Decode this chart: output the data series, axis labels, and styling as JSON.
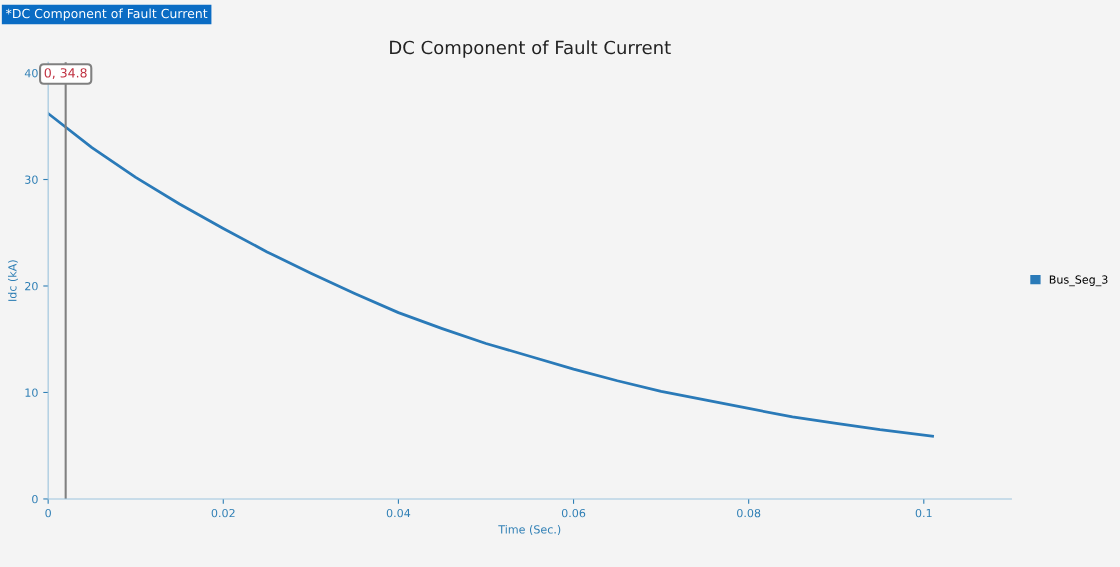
{
  "chart_data": {
    "type": "line",
    "title": "DC Component of Fault Current",
    "xlabel": "Time (Sec.)",
    "ylabel": "Idc (kA)",
    "annotations": [
      "*DC Component of Fault Current"
    ],
    "x": [
      0,
      0.005,
      0.01,
      0.015,
      0.02,
      0.025,
      0.03,
      0.035,
      0.04,
      0.045,
      0.05,
      0.055,
      0.06,
      0.065,
      0.07,
      0.075,
      0.08,
      0.085,
      0.09,
      0.095,
      0.101
    ],
    "series": [
      {
        "name": "Bus_Seg_3",
        "color": "#2a7ab8",
        "values": [
          36.2,
          33.0,
          30.2,
          27.7,
          25.4,
          23.2,
          21.2,
          19.3,
          17.5,
          16.0,
          14.6,
          13.4,
          12.2,
          11.1,
          10.1,
          9.3,
          8.5,
          7.7,
          7.1,
          6.5,
          5.9
        ]
      }
    ],
    "ref_lines": [
      {
        "axis": "x",
        "value": 0.002,
        "label": "0, 34.8",
        "color": "#808080"
      }
    ],
    "xlim": [
      0,
      0.11
    ],
    "ylim": [
      0,
      41
    ],
    "xticks": [
      0,
      0.02,
      0.04,
      0.06,
      0.08,
      {
        "value": 0.1,
        "label": "0.1"
      }
    ],
    "yticks": [
      0,
      10,
      20,
      30,
      40
    ],
    "grid": false,
    "legend": "right",
    "marker": "none",
    "line_style": "solid"
  }
}
